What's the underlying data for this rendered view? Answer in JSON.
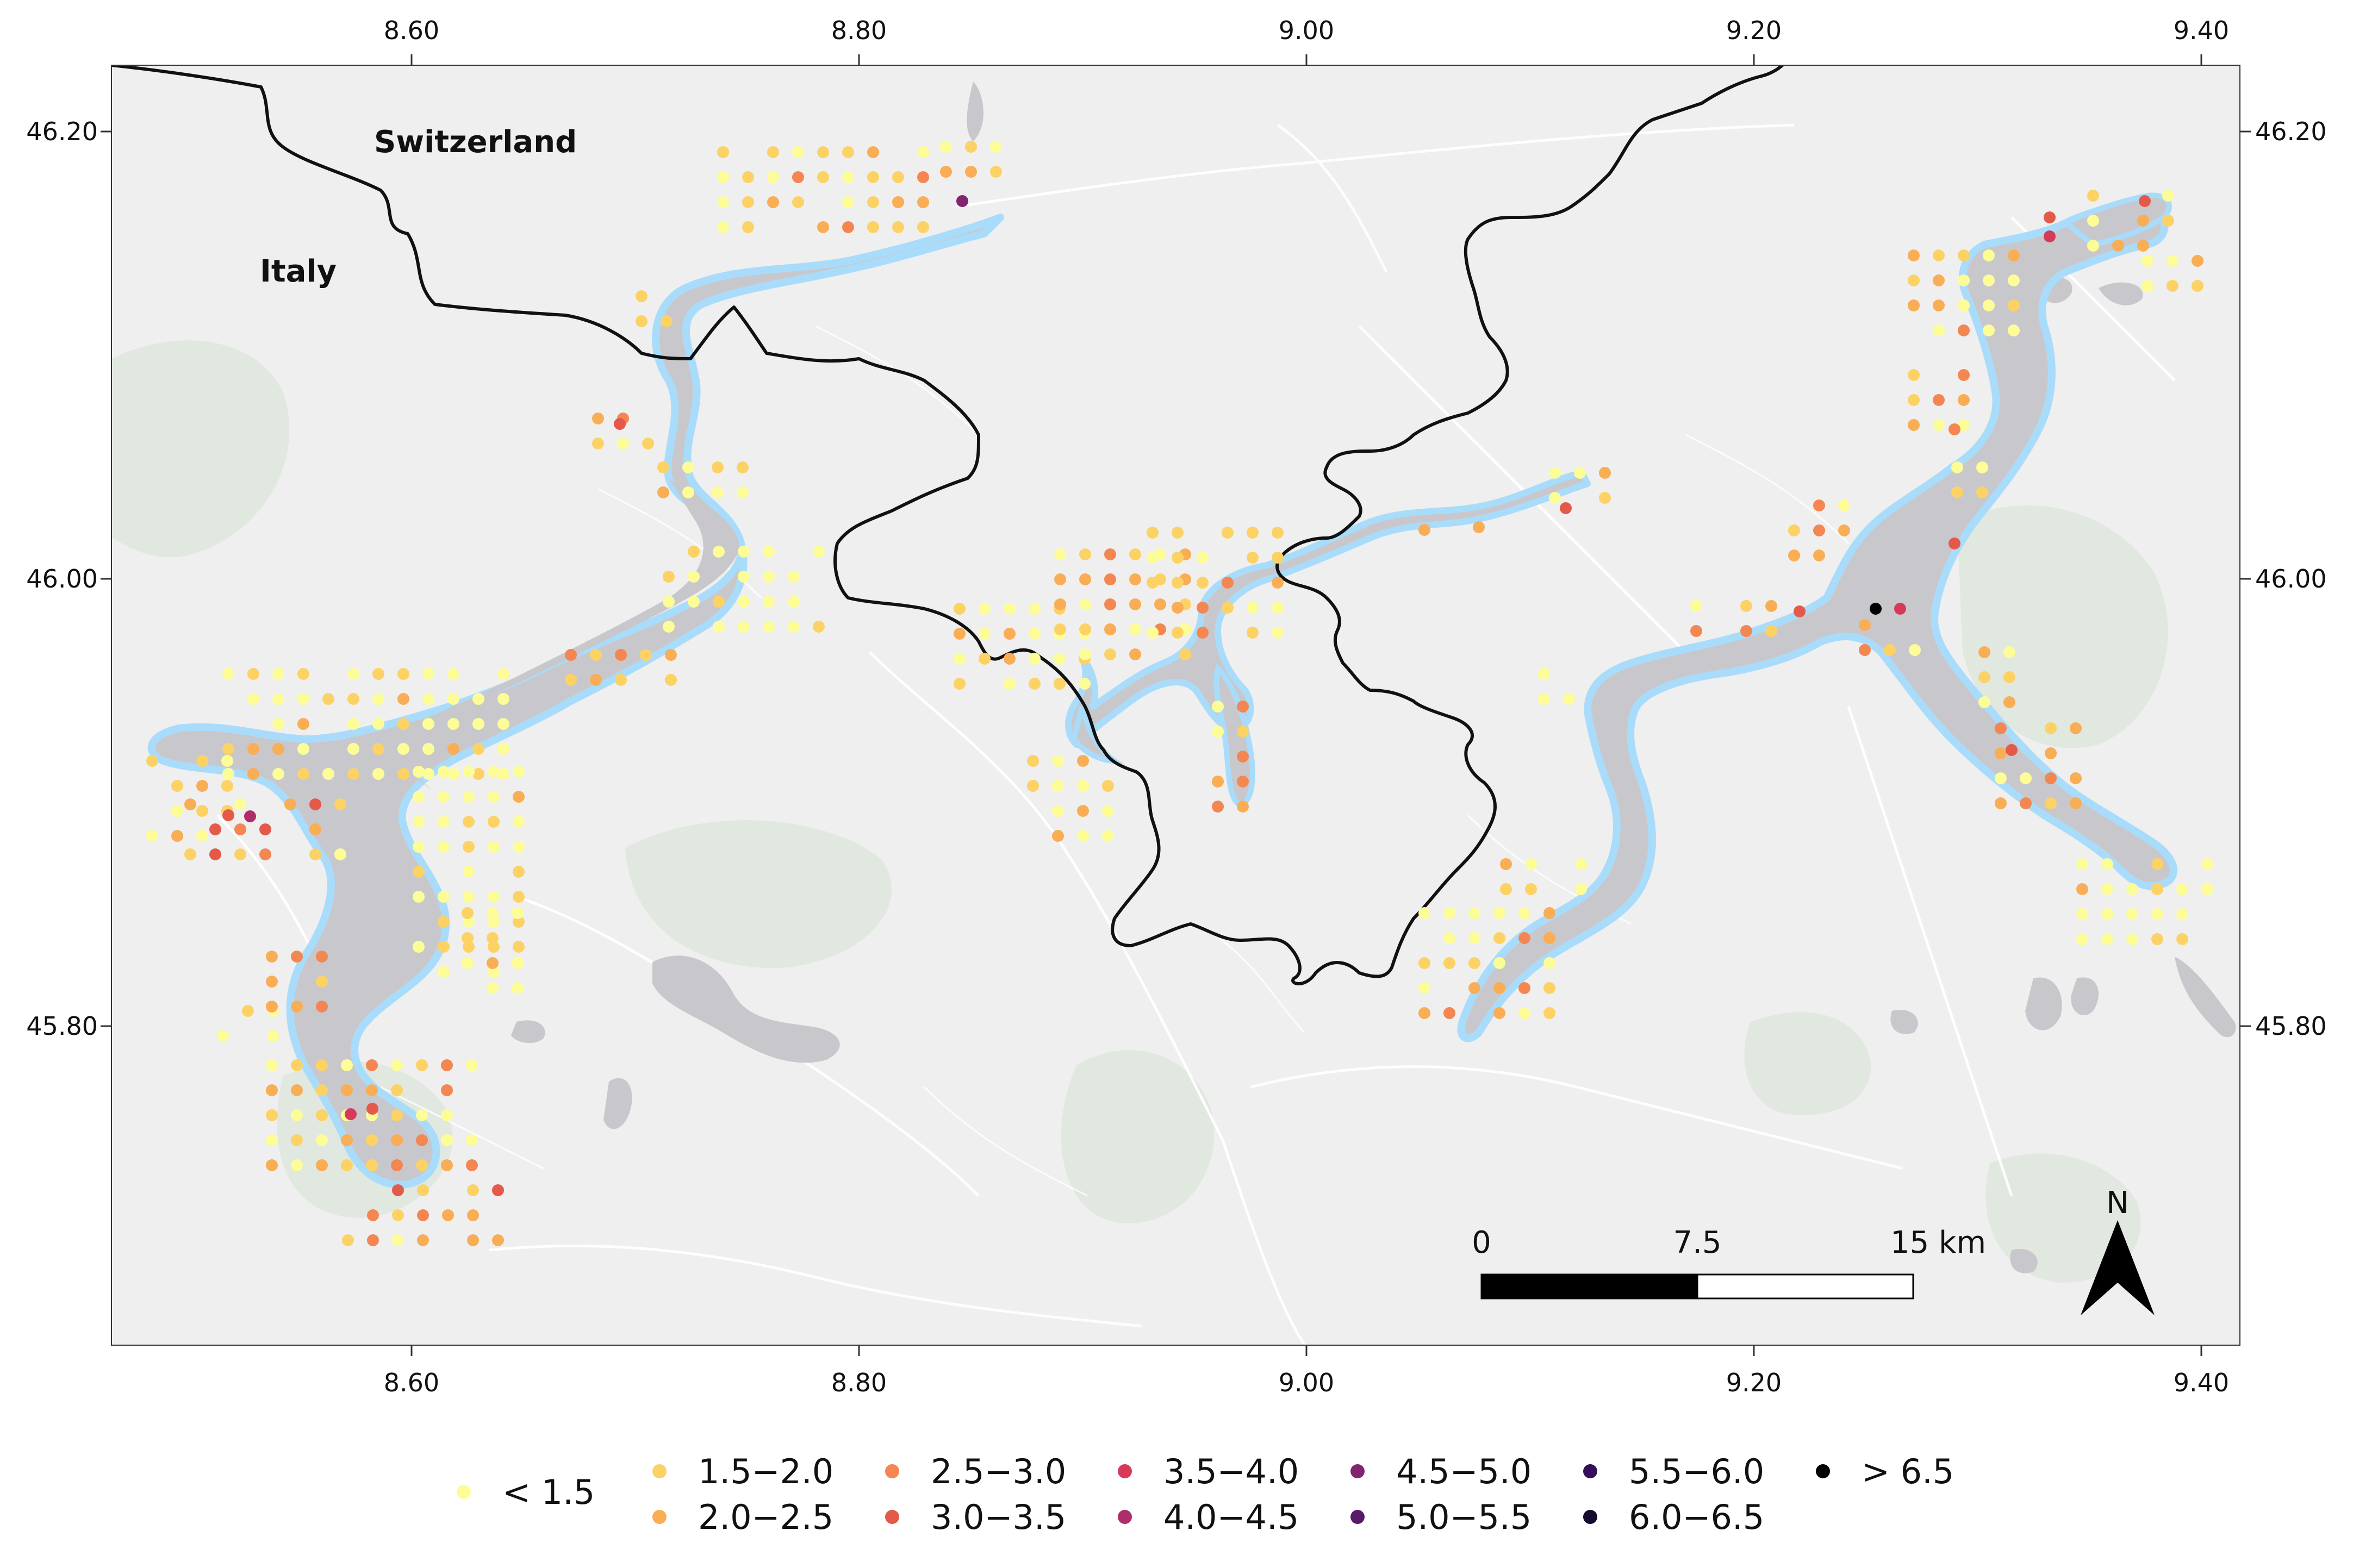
{
  "map": {
    "labels": {
      "switzerland": "Switzerland",
      "italy": "Italy"
    },
    "lon_ticks": [
      "8.60",
      "8.80",
      "9.00",
      "9.20",
      "9.40"
    ],
    "lat_ticks": [
      "46.20",
      "46.00",
      "45.80"
    ],
    "scalebar": {
      "zero": "0",
      "mid": "7.5",
      "end": "15 km"
    },
    "north_label": "N",
    "colors": {
      "land": "#efefef",
      "lake": "#c8c8cc",
      "lake_edge": "#a9dcfb",
      "border": "#111111",
      "green": "#dde6dc"
    }
  },
  "legend": [
    {
      "label": "< 1.5",
      "color": "#fdfd98"
    },
    {
      "label": "1.5−2.0",
      "color": "#fcd265"
    },
    {
      "label": "2.0−2.5",
      "color": "#f9ad55"
    },
    {
      "label": "2.5−3.0",
      "color": "#f48651"
    },
    {
      "label": "3.0−3.5",
      "color": "#e45a4a"
    },
    {
      "label": "3.5−4.0",
      "color": "#d63a58"
    },
    {
      "label": "4.0−4.5",
      "color": "#ad2e68"
    },
    {
      "label": "4.5−5.0",
      "color": "#82246e"
    },
    {
      "label": "5.0−5.5",
      "color": "#5a1a6a"
    },
    {
      "label": "5.5−6.0",
      "color": "#32115a"
    },
    {
      "label": "6.0−6.5",
      "color": "#160c30"
    },
    {
      "label": "> 6.5",
      "color": "#000000"
    }
  ]
}
